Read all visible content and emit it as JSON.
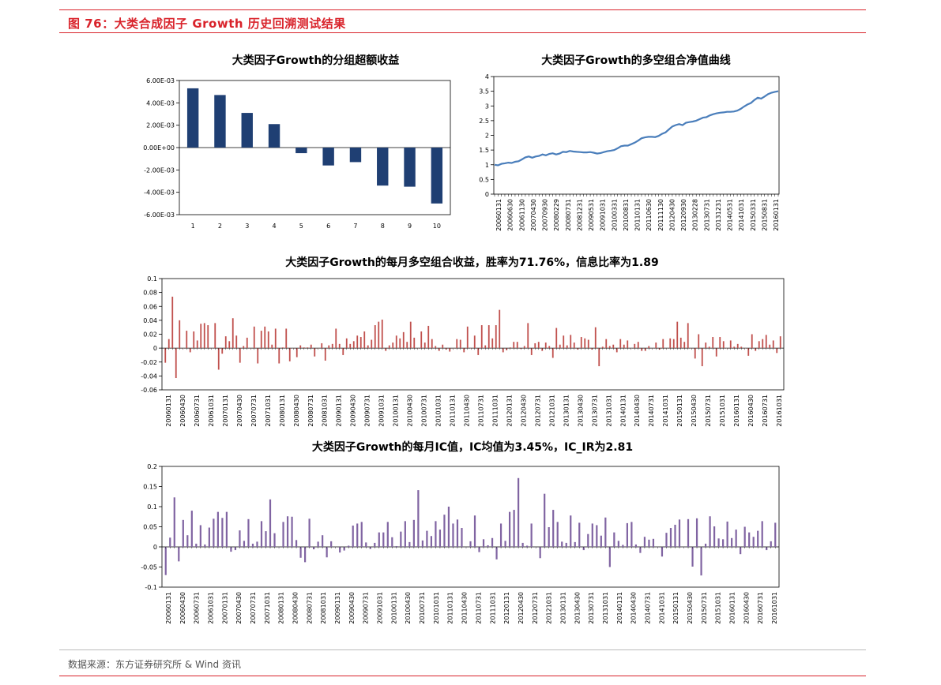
{
  "figure_title": "图 76：大类合成因子 Growth 历史回溯测试结果",
  "source": "数据来源：东方证券研究所 & Wind 资讯",
  "colors": {
    "accent_red": "#d9232b",
    "bar_navy": "#1f3f73",
    "line_blue": "#4a7ebb",
    "bar_red": "#c0504d",
    "bar_purple": "#8064a2"
  },
  "chart_data": [
    {
      "type": "bar",
      "title": "大类因子Growth的分组超额收益",
      "categories": [
        "1",
        "2",
        "3",
        "4",
        "5",
        "6",
        "7",
        "8",
        "9",
        "10"
      ],
      "values": [
        0.0053,
        0.0047,
        0.0031,
        0.0021,
        -0.0005,
        -0.0016,
        -0.0013,
        -0.0034,
        -0.0035,
        -0.005
      ],
      "ylim": [
        -0.006,
        0.006
      ],
      "yticks": [
        "6.00E-03",
        "4.00E-03",
        "2.00E-03",
        "0.00E+00",
        "-2.00E-03",
        "-4.00E-03",
        "-6.00E-03"
      ],
      "grid": false
    },
    {
      "type": "line",
      "title": "大类因子Growth的多空组合净值曲线",
      "x_labels": [
        "20060131",
        "20060630",
        "20061130",
        "20070430",
        "20070930",
        "20080229",
        "20080731",
        "20081231",
        "20090531",
        "20091031",
        "20100331",
        "20100831",
        "20110131",
        "20110630",
        "20111130",
        "20120430",
        "20120930",
        "20130228",
        "20130731",
        "20131231",
        "20140531",
        "20141031",
        "20150331",
        "20150831",
        "20160131"
      ],
      "values": [
        1.0,
        0.98,
        1.03,
        1.05,
        1.07,
        1.06,
        1.1,
        1.12,
        1.18,
        1.25,
        1.28,
        1.24,
        1.28,
        1.3,
        1.35,
        1.32,
        1.37,
        1.39,
        1.35,
        1.38,
        1.44,
        1.43,
        1.47,
        1.45,
        1.44,
        1.43,
        1.42,
        1.42,
        1.43,
        1.41,
        1.38,
        1.4,
        1.43,
        1.46,
        1.48,
        1.5,
        1.56,
        1.63,
        1.65,
        1.65,
        1.7,
        1.75,
        1.82,
        1.9,
        1.93,
        1.95,
        1.95,
        1.94,
        1.98,
        2.05,
        2.1,
        2.2,
        2.3,
        2.35,
        2.38,
        2.35,
        2.43,
        2.45,
        2.47,
        2.5,
        2.55,
        2.6,
        2.62,
        2.68,
        2.72,
        2.75,
        2.77,
        2.78,
        2.8,
        2.8,
        2.81,
        2.84,
        2.9,
        2.98,
        3.05,
        3.1,
        3.2,
        3.28,
        3.25,
        3.32,
        3.4,
        3.45,
        3.48,
        3.5
      ],
      "ylim": [
        0,
        4
      ],
      "yticks": [
        "0",
        "0.5",
        "1",
        "1.5",
        "2",
        "2.5",
        "3",
        "3.5",
        "4"
      ],
      "grid": false
    },
    {
      "type": "bar",
      "title": "大类因子Growth的每月多空组合收益，胜率为71.76%，信息比率为1.89",
      "x_labels": [
        "20060131",
        "20060430",
        "20060731",
        "20061031",
        "20070131",
        "20070430",
        "20070731",
        "20071031",
        "20080131",
        "20080430",
        "20080731",
        "20081031",
        "20090131",
        "20090430",
        "20090731",
        "20091031",
        "20100131",
        "20100430",
        "20100731",
        "20101031",
        "20110131",
        "20110430",
        "20110731",
        "20111031",
        "20120131",
        "20120430",
        "20120731",
        "20121031",
        "20130131",
        "20130430",
        "20130731",
        "20131031",
        "20140131",
        "20140430",
        "20140731",
        "20141031",
        "20150131",
        "20150430",
        "20150731",
        "20151031",
        "20160131",
        "20160430",
        "20160731",
        "20161031"
      ],
      "values": [
        -0.021,
        0.013,
        0.074,
        -0.043,
        0.04,
        0.0,
        0.025,
        -0.006,
        0.024,
        0.011,
        0.035,
        0.036,
        0.033,
        0.0,
        0.036,
        -0.031,
        -0.008,
        0.017,
        0.01,
        0.043,
        0.018,
        -0.021,
        0.003,
        0.015,
        0.0,
        0.031,
        -0.022,
        0.025,
        0.031,
        0.024,
        0.005,
        0.028,
        -0.022,
        0.001,
        0.028,
        -0.019,
        0.0,
        -0.013,
        0.004,
        0.001,
        0.001,
        0.005,
        -0.012,
        0.0,
        0.007,
        -0.018,
        0.004,
        0.006,
        0.028,
        0.006,
        -0.01,
        0.014,
        0.006,
        0.01,
        0.018,
        0.016,
        0.024,
        0.004,
        0.012,
        0.033,
        0.038,
        0.041,
        -0.004,
        0.004,
        0.008,
        0.018,
        0.014,
        0.023,
        0.009,
        0.038,
        0.015,
        0.0,
        0.024,
        0.008,
        0.032,
        0.013,
        0.003,
        -0.004,
        0.005,
        -0.002,
        -0.005,
        0.0,
        0.013,
        0.012,
        -0.006,
        0.031,
        0.0,
        0.018,
        -0.01,
        0.033,
        0.004,
        0.033,
        0.014,
        0.033,
        0.055,
        -0.006,
        -0.003,
        0.001,
        0.009,
        0.009,
        -0.001,
        0.003,
        0.036,
        -0.01,
        0.007,
        0.009,
        -0.004,
        0.008,
        0.003,
        -0.014,
        0.029,
        0.005,
        0.018,
        0.004,
        0.019,
        0.008,
        -0.002,
        0.016,
        0.014,
        0.012,
        -0.002,
        0.03,
        -0.026,
        0.002,
        0.013,
        0.003,
        0.005,
        -0.006,
        0.013,
        0.005,
        0.011,
        0.0,
        0.006,
        0.009,
        -0.004,
        -0.004,
        0.003,
        0.0,
        0.008,
        -0.002,
        0.013,
        0.0,
        0.014,
        0.013,
        0.038,
        0.015,
        0.009,
        0.036,
        0.0,
        -0.015,
        0.02,
        -0.026,
        0.008,
        0.002,
        0.016,
        -0.012,
        0.016,
        0.01,
        0.0,
        0.011,
        0.002,
        0.006,
        0.002,
        0.0,
        -0.011,
        0.02,
        -0.004,
        0.01,
        0.013,
        0.019,
        0.005,
        0.011,
        -0.007,
        0.017
      ],
      "ylim": [
        -0.06,
        0.1
      ],
      "yticks": [
        "0.1",
        "0.08",
        "0.06",
        "0.04",
        "0.02",
        "0",
        "-0.02",
        "-0.04",
        "-0.06"
      ],
      "grid": false
    },
    {
      "type": "bar",
      "title": "大类因子Growth的每月IC值，IC均值为3.45%，IC_IR为2.81",
      "x_labels": [
        "20060131",
        "20060430",
        "20060731",
        "20061031",
        "20070131",
        "20070430",
        "20070731",
        "20071031",
        "20080131",
        "20080430",
        "20080731",
        "20081031",
        "20090131",
        "20090430",
        "20090731",
        "20091031",
        "20100131",
        "20100430",
        "20100731",
        "20101031",
        "20110131",
        "20110430",
        "20110731",
        "20111031",
        "20120131",
        "20120430",
        "20120731",
        "20121031",
        "20130131",
        "20130430",
        "20130731",
        "20131031",
        "20140131",
        "20140430",
        "20140731",
        "20141031",
        "20150131",
        "20150430",
        "20150731",
        "20151031",
        "20160131",
        "20160430",
        "20160731",
        "20161031"
      ],
      "values": [
        -0.07,
        0.023,
        0.123,
        -0.036,
        0.067,
        0.029,
        0.09,
        0.008,
        0.054,
        0.006,
        0.048,
        0.07,
        0.087,
        0.072,
        0.087,
        -0.012,
        -0.008,
        0.041,
        0.015,
        0.069,
        0.008,
        0.013,
        0.064,
        0.039,
        0.118,
        0.034,
        0.0,
        0.062,
        0.076,
        0.075,
        0.017,
        -0.027,
        -0.038,
        0.07,
        -0.006,
        0.013,
        0.029,
        -0.026,
        0.014,
        0.0,
        -0.014,
        -0.009,
        0.003,
        0.053,
        0.058,
        0.062,
        0.011,
        -0.005,
        0.01,
        0.036,
        0.036,
        0.062,
        0.024,
        0.002,
        0.038,
        0.064,
        0.012,
        0.067,
        0.141,
        0.016,
        0.04,
        0.027,
        0.064,
        0.043,
        0.08,
        0.1,
        0.058,
        0.068,
        0.047,
        0.0,
        0.014,
        0.078,
        -0.013,
        0.019,
        0.004,
        0.022,
        -0.031,
        0.058,
        0.015,
        0.087,
        0.092,
        0.171,
        0.01,
        0.003,
        0.058,
        0.0,
        -0.028,
        0.132,
        0.049,
        0.092,
        0.062,
        0.013,
        0.01,
        0.078,
        0.012,
        0.06,
        -0.008,
        0.032,
        0.058,
        0.054,
        0.028,
        0.073,
        -0.05,
        0.036,
        0.015,
        0.005,
        0.059,
        0.062,
        0.006,
        -0.015,
        0.025,
        0.018,
        0.02,
        0.0,
        -0.024,
        0.035,
        0.047,
        0.055,
        0.068,
        0.0,
        0.069,
        -0.049,
        0.071,
        -0.071,
        0.008,
        0.076,
        0.051,
        0.021,
        0.019,
        0.063,
        0.022,
        0.043,
        -0.018,
        0.05,
        0.036,
        0.025,
        0.04,
        0.064,
        -0.008,
        0.014,
        0.06
      ],
      "ylim": [
        -0.1,
        0.2
      ],
      "yticks": [
        "0.2",
        "0.15",
        "0.1",
        "0.05",
        "0",
        "-0.05",
        "-0.1"
      ],
      "grid": false
    }
  ]
}
